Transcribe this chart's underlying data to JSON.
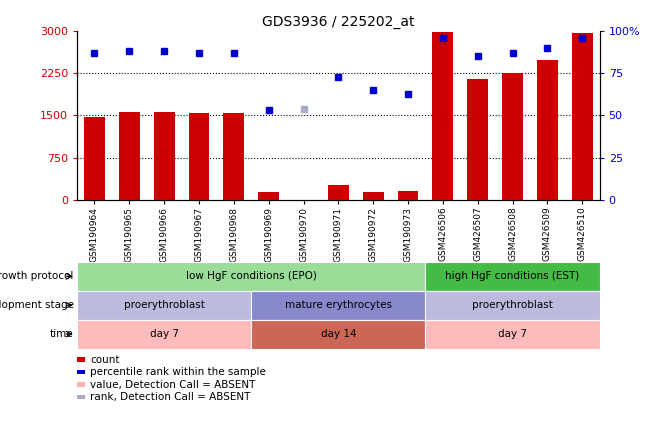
{
  "title": "GDS3936 / 225202_at",
  "samples": [
    "GSM190964",
    "GSM190965",
    "GSM190966",
    "GSM190967",
    "GSM190968",
    "GSM190969",
    "GSM190970",
    "GSM190971",
    "GSM190972",
    "GSM190973",
    "GSM426506",
    "GSM426507",
    "GSM426508",
    "GSM426509",
    "GSM426510"
  ],
  "count_values": [
    1480,
    1560,
    1560,
    1540,
    1540,
    130,
    0,
    270,
    145,
    165,
    2980,
    2140,
    2250,
    2490,
    2960
  ],
  "count_absent": [
    false,
    false,
    false,
    false,
    false,
    false,
    true,
    false,
    false,
    false,
    false,
    false,
    false,
    false,
    false
  ],
  "rank_values": [
    87,
    88,
    88,
    87,
    87,
    53,
    54,
    73,
    65,
    63,
    96,
    85,
    87,
    90,
    96
  ],
  "rank_absent": [
    false,
    false,
    false,
    false,
    false,
    false,
    true,
    false,
    false,
    false,
    false,
    false,
    false,
    false,
    false
  ],
  "bar_color_normal": "#cc0000",
  "bar_color_absent": "#ffb3b3",
  "dot_color_normal": "#0000cc",
  "dot_color_absent": "#aaaacc",
  "ylim_left": [
    0,
    3000
  ],
  "ylim_right": [
    0,
    100
  ],
  "yticks_left": [
    0,
    750,
    1500,
    2250,
    3000
  ],
  "yticks_right": [
    0,
    25,
    50,
    75,
    100
  ],
  "ytick_labels_right": [
    "0",
    "25",
    "50",
    "75",
    "100%"
  ],
  "grid_values": [
    750,
    1500,
    2250
  ],
  "background_color": "#ffffff",
  "growth_protocol_row": {
    "label": "growth protocol",
    "segments": [
      {
        "text": "low HgF conditions (EPO)",
        "start": 0,
        "end": 10,
        "color": "#99dd99"
      },
      {
        "text": "high HgF conditions (EST)",
        "start": 10,
        "end": 15,
        "color": "#44bb44"
      }
    ]
  },
  "development_stage_row": {
    "label": "development stage",
    "segments": [
      {
        "text": "proerythroblast",
        "start": 0,
        "end": 5,
        "color": "#bbbbdd"
      },
      {
        "text": "mature erythrocytes",
        "start": 5,
        "end": 10,
        "color": "#8888cc"
      },
      {
        "text": "proerythroblast",
        "start": 10,
        "end": 15,
        "color": "#bbbbdd"
      }
    ]
  },
  "time_row": {
    "label": "time",
    "segments": [
      {
        "text": "day 7",
        "start": 0,
        "end": 5,
        "color": "#ffbbbb"
      },
      {
        "text": "day 14",
        "start": 5,
        "end": 10,
        "color": "#cc6655"
      },
      {
        "text": "day 7",
        "start": 10,
        "end": 15,
        "color": "#ffbbbb"
      }
    ]
  },
  "legend_items": [
    {
      "color": "#cc0000",
      "label": "count"
    },
    {
      "color": "#0000cc",
      "label": "percentile rank within the sample"
    },
    {
      "color": "#ffb3b3",
      "label": "value, Detection Call = ABSENT"
    },
    {
      "color": "#aaaacc",
      "label": "rank, Detection Call = ABSENT"
    }
  ],
  "tick_color_left": "#cc0000",
  "tick_color_right": "#0000cc"
}
